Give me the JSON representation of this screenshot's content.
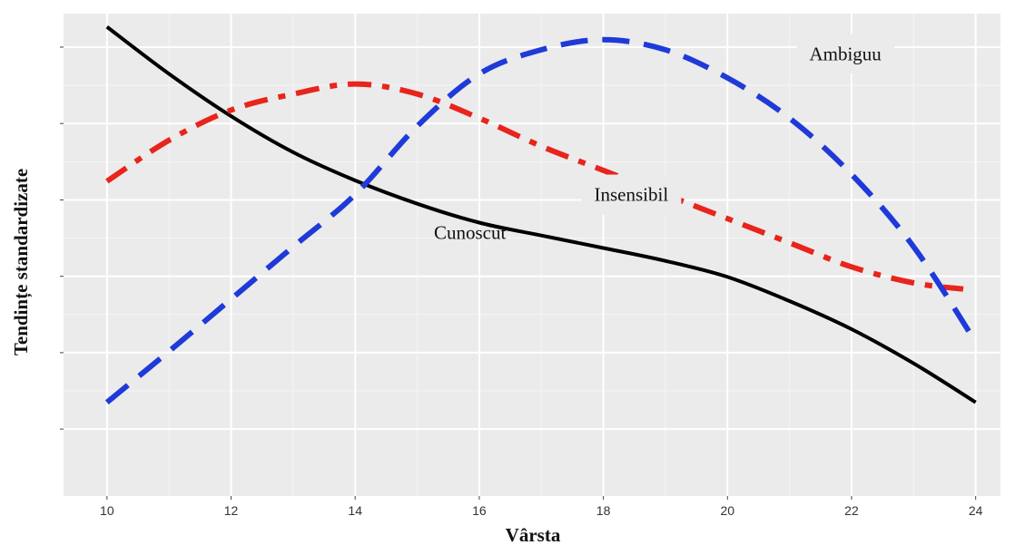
{
  "chart_data": {
    "type": "line",
    "xlabel": "Vârsta",
    "ylabel": "Tendințe standardizate",
    "xlim": [
      9.3,
      24.4
    ],
    "ylim": [
      0,
      1.2
    ],
    "x_ticks": [
      10,
      12,
      14,
      16,
      18,
      20,
      22,
      24
    ],
    "y_tick_count": 6,
    "grid": true,
    "background": "#ebebeb",
    "series": [
      {
        "name": "Cunoscut",
        "color": "#000000",
        "dash": "solid",
        "x": [
          10,
          11,
          12,
          13,
          14,
          15,
          16,
          17,
          18,
          19,
          20,
          21,
          22,
          23,
          24
        ],
        "y": [
          1.167,
          1.05,
          0.945,
          0.855,
          0.785,
          0.727,
          0.68,
          0.648,
          0.617,
          0.585,
          0.545,
          0.485,
          0.415,
          0.33,
          0.233
        ]
      },
      {
        "name": "Insensibil",
        "color": "#e8241c",
        "dash": "dashdot",
        "x": [
          10,
          11,
          12,
          13,
          14,
          15,
          16,
          17,
          18,
          19,
          20,
          21,
          22,
          23,
          23.8
        ],
        "y": [
          0.783,
          0.885,
          0.96,
          1.0,
          1.025,
          1.0,
          0.94,
          0.87,
          0.81,
          0.75,
          0.69,
          0.63,
          0.57,
          0.53,
          0.515
        ]
      },
      {
        "name": "Ambiguu",
        "color": "#1f3ad9",
        "dash": "dashed",
        "x": [
          10,
          11,
          12,
          13,
          14,
          15,
          16,
          17,
          18,
          19,
          20,
          21,
          22,
          23,
          24
        ],
        "y": [
          0.233,
          0.36,
          0.49,
          0.62,
          0.75,
          0.92,
          1.05,
          1.11,
          1.135,
          1.11,
          1.04,
          0.94,
          0.8,
          0.62,
          0.383
        ]
      }
    ],
    "annotations": [
      {
        "text": "Ambiguu",
        "series": "Ambiguu",
        "x": 21.9,
        "y": 1.095,
        "boxed": true
      },
      {
        "text": "Insensibil",
        "series": "Insensibil",
        "x": 18.45,
        "y": 0.745,
        "boxed": true
      },
      {
        "text": "Cunoscut",
        "series": "Cunoscut",
        "x": 15.85,
        "y": 0.65,
        "boxed": false
      }
    ]
  }
}
